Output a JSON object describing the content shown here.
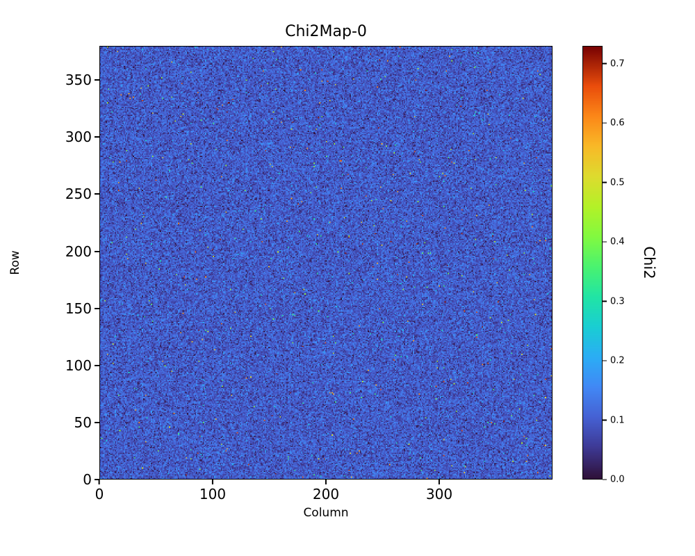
{
  "chart_data": {
    "type": "heatmap",
    "title": "Chi2Map-0",
    "xlabel": "Column",
    "ylabel": "Row",
    "x_range": [
      0,
      400
    ],
    "y_range": [
      0,
      380
    ],
    "x_ticks": [
      0,
      100,
      200,
      300
    ],
    "x_tick_labels": [
      "0",
      "100",
      "200",
      "300"
    ],
    "y_ticks": [
      0,
      50,
      100,
      150,
      200,
      250,
      300,
      350
    ],
    "y_tick_labels": [
      "0",
      "50",
      "100",
      "150",
      "200",
      "250",
      "300",
      "350"
    ],
    "colorbar": {
      "label": "Chi2",
      "vmin": 0.0,
      "vmax": 0.73,
      "ticks": [
        0.0,
        0.1,
        0.2,
        0.3,
        0.4,
        0.5,
        0.6,
        0.7
      ],
      "tick_labels": [
        "0.0",
        "0.1",
        "0.2",
        "0.3",
        "0.4",
        "0.5",
        "0.6",
        "0.7"
      ],
      "colormap": "turbo"
    },
    "grid": false,
    "legend": null,
    "distribution": {
      "description": "dense per-pixel random chi2 noise; bulk of values ~0.03-0.18 (blue field with dark speckles), sparse hot outlier pixels up to ~0.73 (yellow/orange/red dots)",
      "mean": 0.095,
      "std": 0.034,
      "outlier_fraction": 0.004
    },
    "background_color": "#ffffff"
  }
}
